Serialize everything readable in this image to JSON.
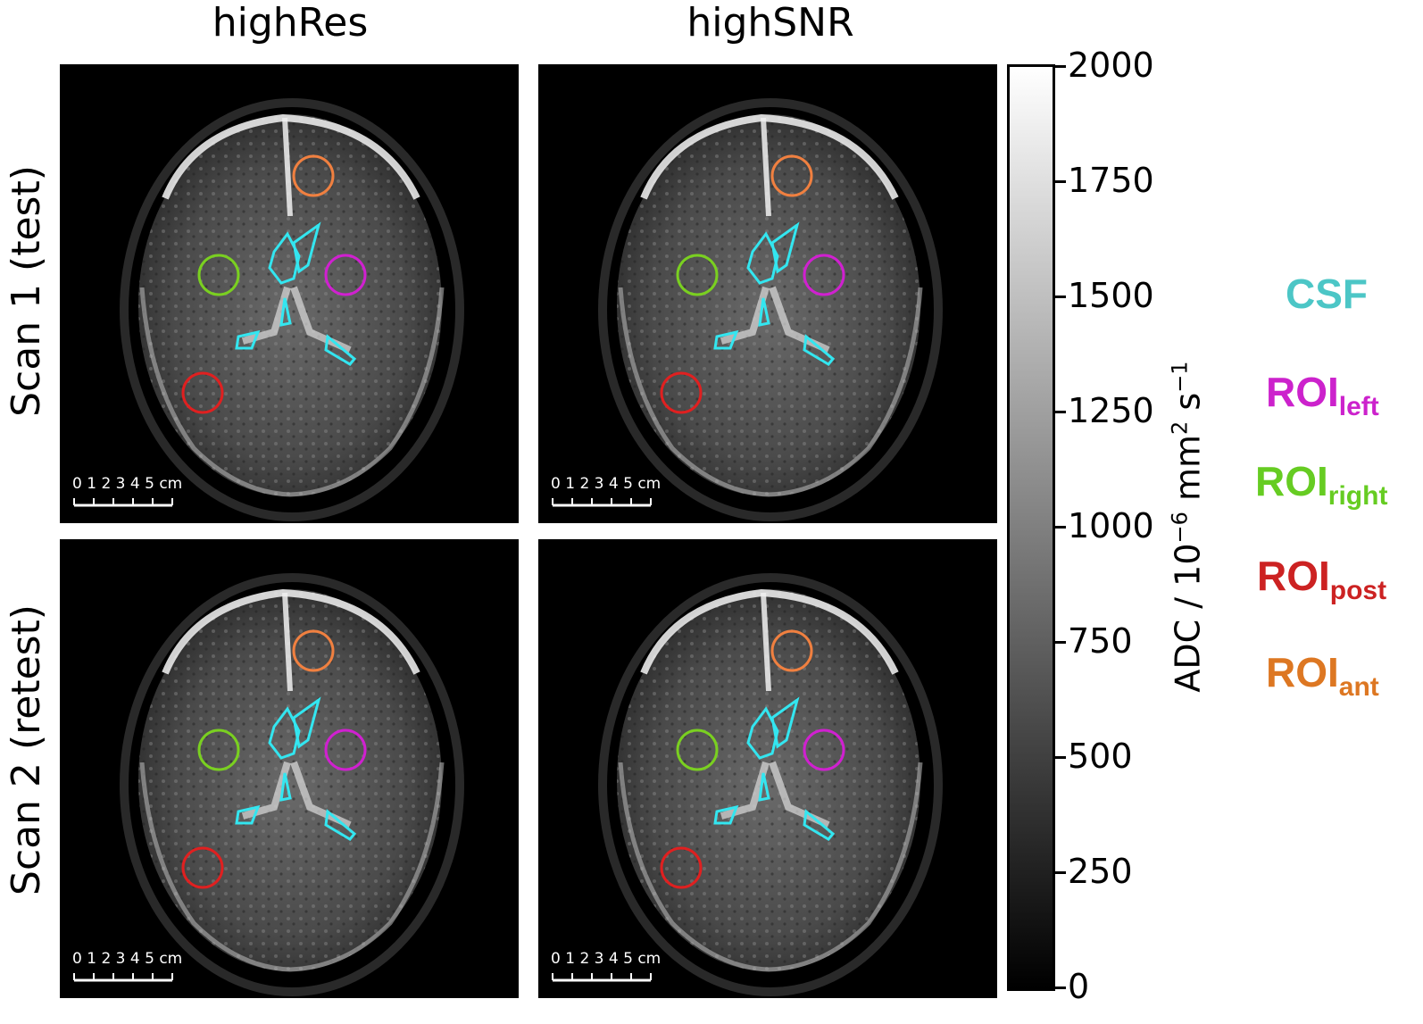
{
  "columns": {
    "left": "highRes",
    "right": "highSNR"
  },
  "rows": {
    "top": "Scan 1 (test)",
    "bottom": "Scan 2 (retest)"
  },
  "scalebar": {
    "labels": "0 1 2 3 4 5 cm"
  },
  "colorbar": {
    "title": "ADC / 10",
    "title_exp": "−6",
    "title_units": " mm",
    "title_units_exp": "2",
    "title_tail": " s",
    "title_tail_exp": "−1",
    "ticks": [
      "2000",
      "1750",
      "1500",
      "1250",
      "1000",
      "750",
      "500",
      "250",
      "0"
    ],
    "cmap": "gray"
  },
  "legend": {
    "csf": {
      "label": "CSF",
      "sub": "",
      "color": "#4cc6c6"
    },
    "left": {
      "label": "ROI",
      "sub": "left",
      "color": "#cc22cc"
    },
    "right": {
      "label": "ROI",
      "sub": "right",
      "color": "#66cc22"
    },
    "post": {
      "label": "ROI",
      "sub": "post",
      "color": "#cc2222"
    },
    "ant": {
      "label": "ROI",
      "sub": "ant",
      "color": "#dd7722"
    }
  },
  "overlay_colors": {
    "csf": "#33e6f0",
    "left": "#d020d0",
    "right": "#7ad020",
    "post": "#e02020",
    "ant": "#f08040"
  }
}
